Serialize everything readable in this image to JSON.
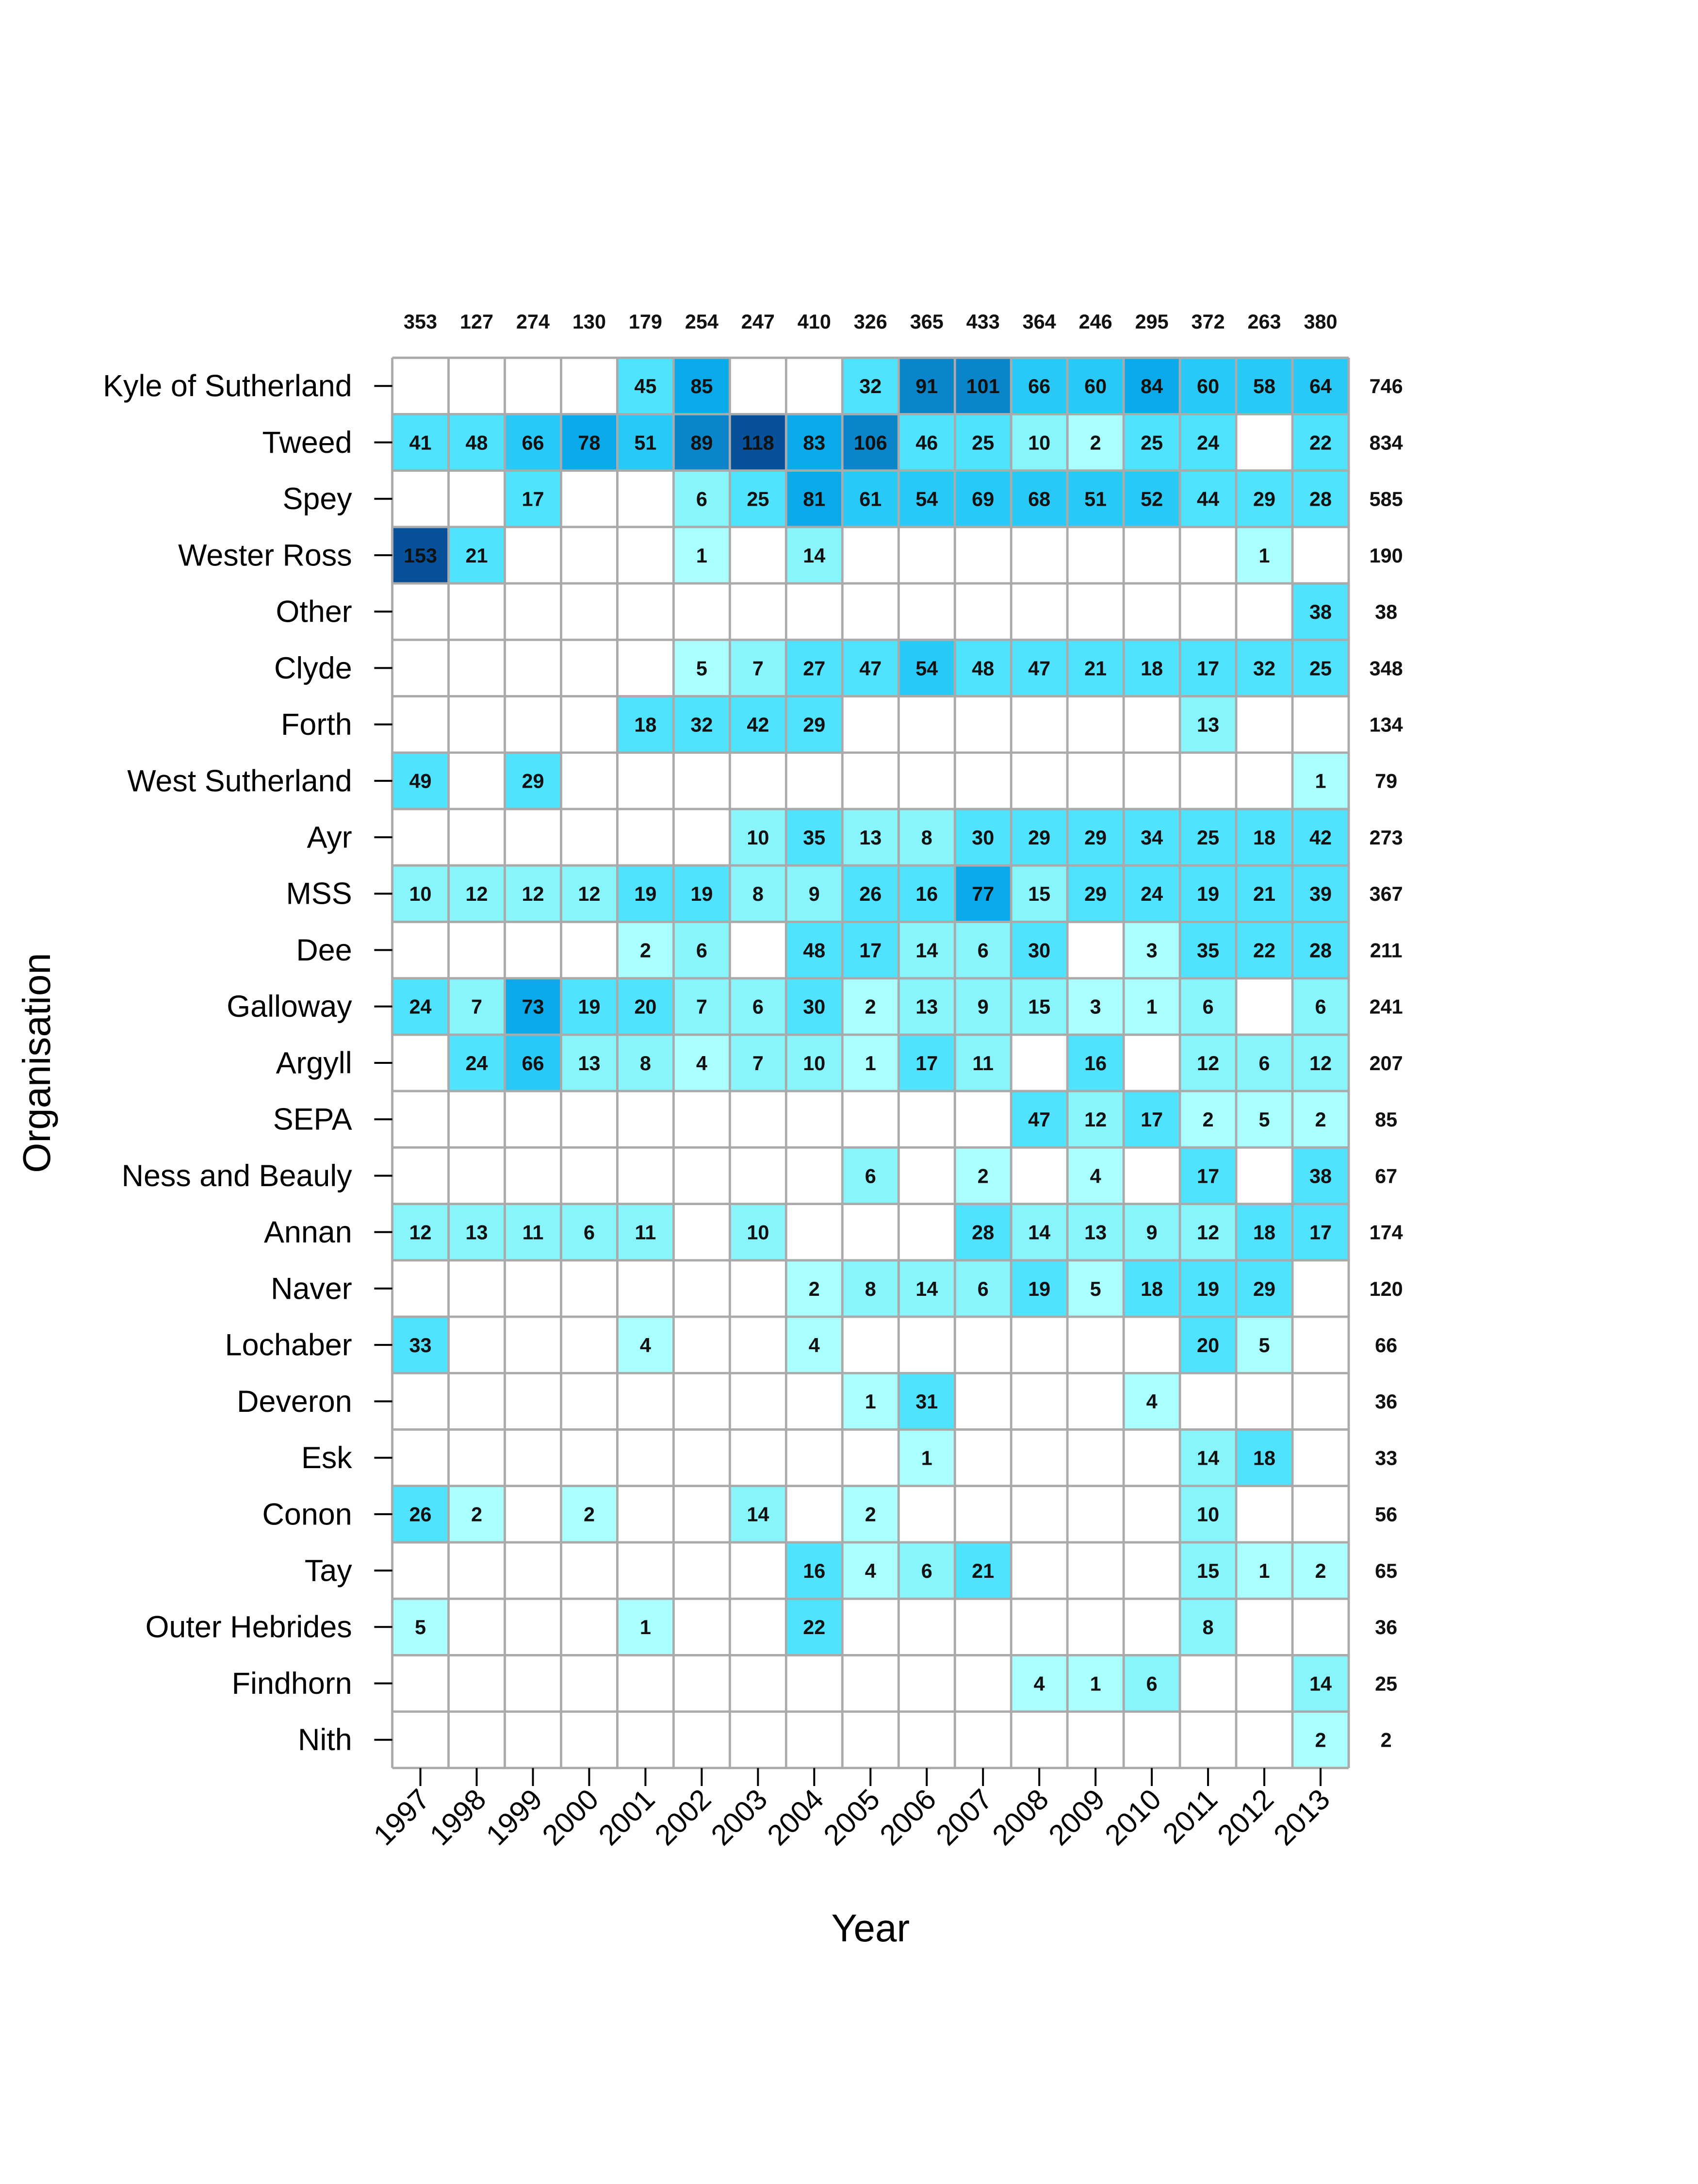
{
  "chart_data": {
    "type": "heatmap",
    "xlabel": "Year",
    "ylabel": "Organisation",
    "columns": [
      "1997",
      "1998",
      "1999",
      "2000",
      "2001",
      "2002",
      "2003",
      "2004",
      "2005",
      "2006",
      "2007",
      "2008",
      "2009",
      "2010",
      "2011",
      "2012",
      "2013"
    ],
    "column_totals": [
      353,
      127,
      274,
      130,
      179,
      254,
      247,
      410,
      326,
      365,
      433,
      364,
      246,
      295,
      372,
      263,
      380
    ],
    "rows": [
      "Kyle of Sutherland",
      "Tweed",
      "Spey",
      "Wester Ross",
      "Other",
      "Clyde",
      "Forth",
      "West Sutherland",
      "Ayr",
      "MSS",
      "Dee",
      "Galloway",
      "Argyll",
      "SEPA",
      "Ness and Beauly",
      "Annan",
      "Naver",
      "Lochaber",
      "Deveron",
      "Esk",
      "Conon",
      "Tay",
      "Outer Hebrides",
      "Findhorn",
      "Nith"
    ],
    "row_totals": [
      746,
      834,
      585,
      190,
      38,
      348,
      134,
      79,
      273,
      367,
      211,
      241,
      207,
      85,
      67,
      174,
      120,
      66,
      36,
      33,
      56,
      65,
      36,
      25,
      2
    ],
    "values": [
      [
        null,
        null,
        null,
        null,
        45,
        85,
        null,
        null,
        32,
        91,
        101,
        66,
        60,
        84,
        60,
        58,
        64
      ],
      [
        41,
        48,
        66,
        78,
        51,
        89,
        118,
        83,
        106,
        46,
        25,
        10,
        2,
        25,
        24,
        null,
        22
      ],
      [
        null,
        null,
        17,
        null,
        null,
        6,
        25,
        81,
        61,
        54,
        69,
        68,
        51,
        52,
        44,
        29,
        28
      ],
      [
        153,
        21,
        null,
        null,
        null,
        1,
        null,
        14,
        null,
        null,
        null,
        null,
        null,
        null,
        null,
        1,
        null
      ],
      [
        null,
        null,
        null,
        null,
        null,
        null,
        null,
        null,
        null,
        null,
        null,
        null,
        null,
        null,
        null,
        null,
        38
      ],
      [
        null,
        null,
        null,
        null,
        null,
        5,
        7,
        27,
        47,
        54,
        48,
        47,
        21,
        18,
        17,
        32,
        25
      ],
      [
        null,
        null,
        null,
        null,
        18,
        32,
        42,
        29,
        null,
        null,
        null,
        null,
        null,
        null,
        13,
        null,
        null
      ],
      [
        49,
        null,
        29,
        null,
        null,
        null,
        null,
        null,
        null,
        null,
        null,
        null,
        null,
        null,
        null,
        null,
        1
      ],
      [
        null,
        null,
        null,
        null,
        null,
        null,
        10,
        35,
        13,
        8,
        30,
        29,
        29,
        34,
        25,
        18,
        42
      ],
      [
        10,
        12,
        12,
        12,
        19,
        19,
        8,
        9,
        26,
        16,
        77,
        15,
        29,
        24,
        19,
        21,
        39
      ],
      [
        null,
        null,
        null,
        null,
        2,
        6,
        null,
        48,
        17,
        14,
        6,
        30,
        null,
        3,
        35,
        22,
        28
      ],
      [
        24,
        7,
        73,
        19,
        20,
        7,
        6,
        30,
        2,
        13,
        9,
        15,
        3,
        1,
        6,
        null,
        6
      ],
      [
        null,
        24,
        66,
        13,
        8,
        4,
        7,
        10,
        1,
        17,
        11,
        null,
        16,
        null,
        12,
        6,
        12
      ],
      [
        null,
        null,
        null,
        null,
        null,
        null,
        null,
        null,
        null,
        null,
        null,
        47,
        12,
        17,
        2,
        5,
        2
      ],
      [
        null,
        null,
        null,
        null,
        null,
        null,
        null,
        null,
        6,
        null,
        2,
        null,
        4,
        null,
        17,
        null,
        38
      ],
      [
        12,
        13,
        11,
        6,
        11,
        null,
        10,
        null,
        null,
        null,
        28,
        14,
        13,
        9,
        12,
        18,
        17
      ],
      [
        null,
        null,
        null,
        null,
        null,
        null,
        null,
        2,
        8,
        14,
        6,
        19,
        5,
        18,
        19,
        29,
        null
      ],
      [
        33,
        null,
        null,
        null,
        4,
        null,
        null,
        4,
        null,
        null,
        null,
        null,
        null,
        null,
        20,
        5,
        null
      ],
      [
        null,
        null,
        null,
        null,
        null,
        null,
        null,
        null,
        1,
        31,
        null,
        null,
        null,
        4,
        null,
        null,
        null
      ],
      [
        null,
        null,
        null,
        null,
        null,
        null,
        null,
        null,
        null,
        1,
        null,
        null,
        null,
        null,
        14,
        18,
        null
      ],
      [
        26,
        2,
        null,
        2,
        null,
        null,
        14,
        null,
        2,
        null,
        null,
        null,
        null,
        null,
        10,
        null,
        null
      ],
      [
        null,
        null,
        null,
        null,
        null,
        null,
        null,
        16,
        4,
        6,
        21,
        null,
        null,
        null,
        15,
        1,
        2
      ],
      [
        5,
        null,
        null,
        null,
        1,
        null,
        null,
        22,
        null,
        null,
        null,
        null,
        null,
        null,
        8,
        null,
        null
      ],
      [
        null,
        null,
        null,
        null,
        null,
        null,
        null,
        null,
        null,
        null,
        null,
        4,
        1,
        6,
        null,
        null,
        14
      ],
      [
        null,
        null,
        null,
        null,
        null,
        null,
        null,
        null,
        null,
        null,
        null,
        null,
        null,
        null,
        null,
        null,
        2
      ]
    ],
    "color_scale": [
      "#aaffff",
      "#87f5fb",
      "#4fe3ff",
      "#29c9f7",
      "#0aaaea",
      "#0a85c9",
      "#06519a"
    ],
    "empty_cell_color": "#ffffff",
    "grid_color": "#aaaaaa",
    "grid": true
  }
}
